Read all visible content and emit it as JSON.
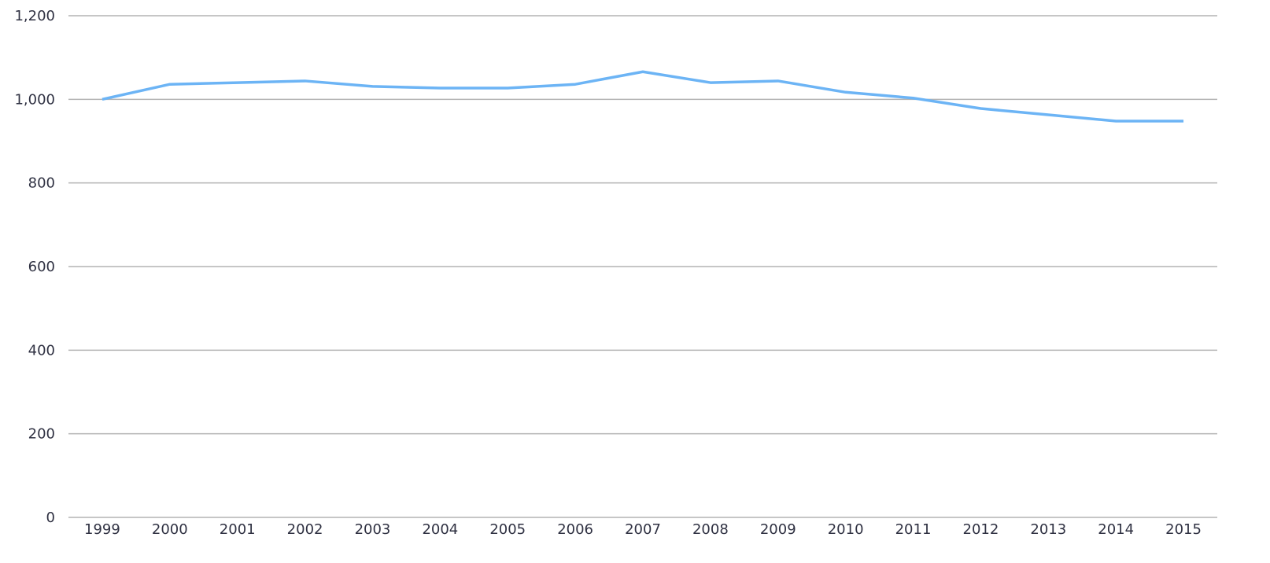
{
  "chart_data": {
    "type": "line",
    "categories": [
      "1999",
      "2000",
      "2001",
      "2002",
      "2003",
      "2004",
      "2005",
      "2006",
      "2007",
      "2008",
      "2009",
      "2010",
      "2011",
      "2012",
      "2013",
      "2014",
      "2015"
    ],
    "series": [
      {
        "color": "#6cb4f5",
        "values": [
          1000,
          1036,
          1040,
          1044,
          1031,
          1027,
          1027,
          1036,
          1066,
          1040,
          1044,
          1017,
          1003,
          978,
          963,
          948,
          948
        ]
      }
    ],
    "ylim": [
      0,
      1200
    ],
    "yticks": [
      0,
      200,
      400,
      600,
      800,
      {
        "value": 1000,
        "label": "1,000"
      },
      {
        "value": 1200,
        "label": "1,200"
      }
    ],
    "grid": true
  }
}
